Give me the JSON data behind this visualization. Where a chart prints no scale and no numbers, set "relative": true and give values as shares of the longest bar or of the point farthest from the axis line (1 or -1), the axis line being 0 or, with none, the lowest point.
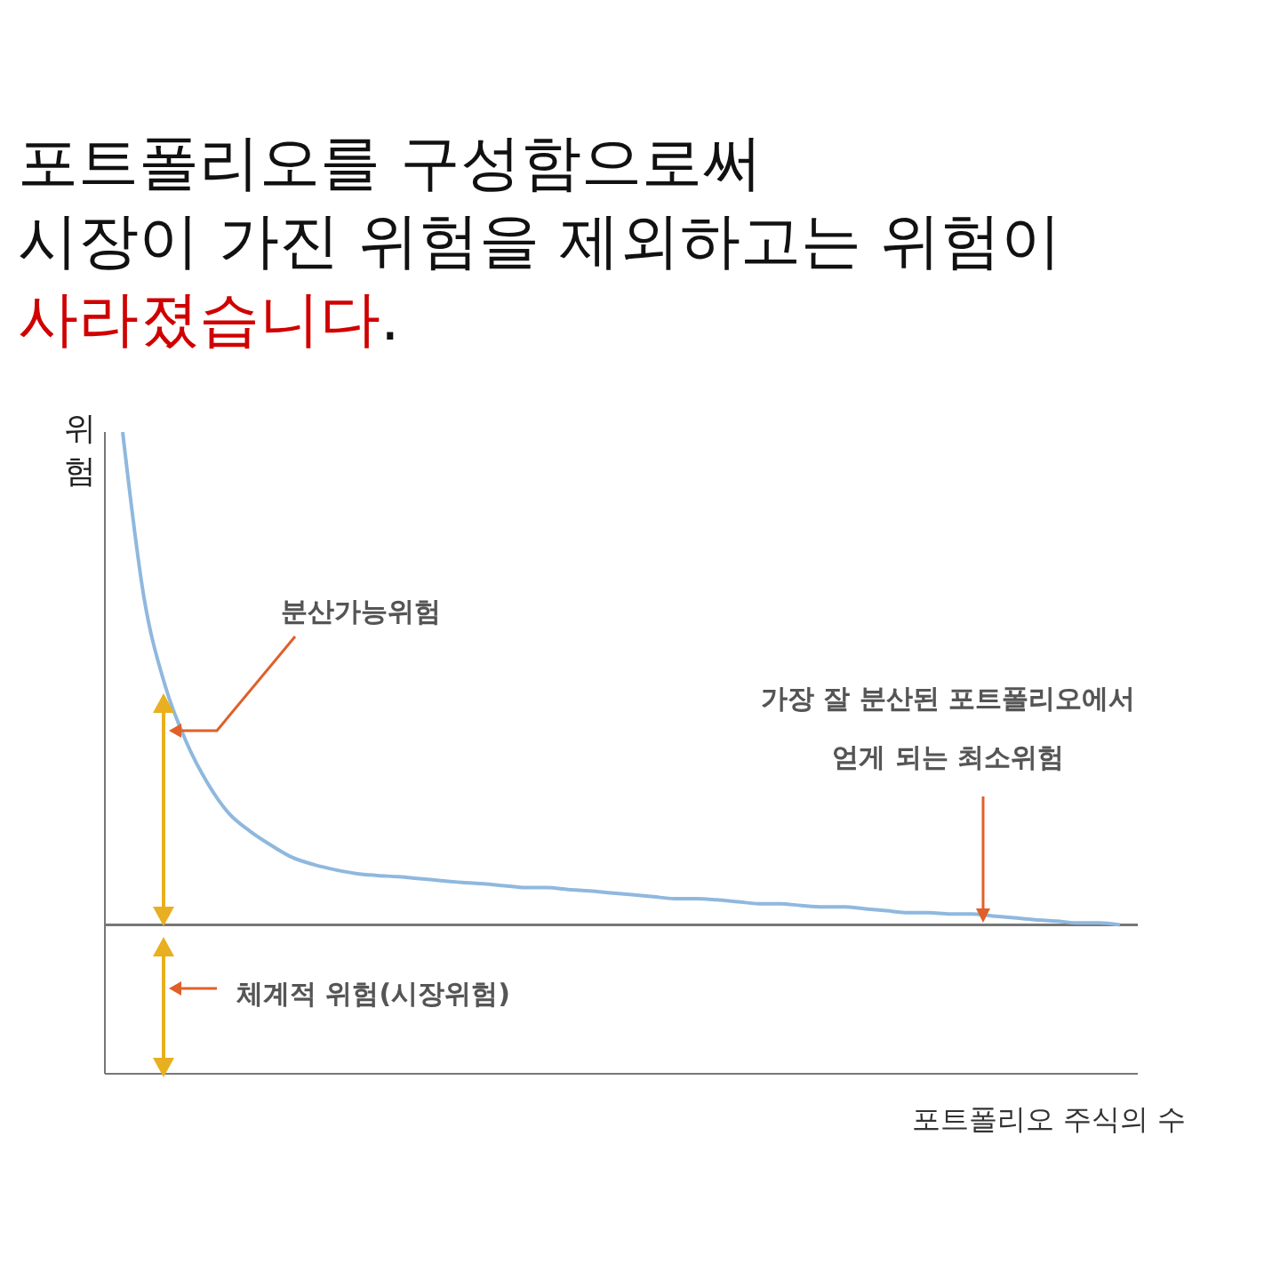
{
  "chart_data": {
    "type": "line",
    "title": "포트폴리오를 구성함으로써\n시장이 가진 위험을 제외하고는 위험이\n사라졌습니다.",
    "xlabel": "포트폴리오 주식의 수",
    "ylabel": "위험",
    "annotations": [
      "분산가능위험",
      "가장 잘 분산된 포트폴리오에서\n얻게 되는 최소위험",
      "체계적 위험(시장위험)"
    ],
    "categories": [
      null,
      null,
      null,
      null,
      null,
      null,
      null,
      null,
      null,
      null,
      null,
      null,
      null,
      null,
      null,
      null,
      null,
      null,
      null,
      null,
      null,
      null,
      null,
      null,
      null,
      null,
      null,
      null,
      null,
      null,
      null,
      null,
      null,
      null,
      null,
      null,
      null,
      null,
      null,
      null,
      null,
      null,
      null,
      null,
      null,
      null,
      null,
      null
    ],
    "values": [
      1,
      0.743,
      0.605,
      0.517,
      0.453,
      0.406,
      0.378,
      0.356,
      0.337,
      0.326,
      0.318,
      0.312,
      0.309,
      0.307,
      0.304,
      0.301,
      0.298,
      0.296,
      0.293,
      0.29,
      0.29,
      0.287,
      0.285,
      0.282,
      0.279,
      0.276,
      0.273,
      0.273,
      0.271,
      0.268,
      0.265,
      0.265,
      0.262,
      0.26,
      0.26,
      0.257,
      0.254,
      0.251,
      0.251,
      0.249,
      0.249,
      0.246,
      0.243,
      0.24,
      0.238,
      0.235,
      0.235,
      0.232
    ],
    "color": "#8fb8de",
    "relative": true,
    "marker": "none",
    "ref_lines": [
      {
        "axis": "y",
        "value": 0.232,
        "color": "#777777"
      }
    ]
  }
}
